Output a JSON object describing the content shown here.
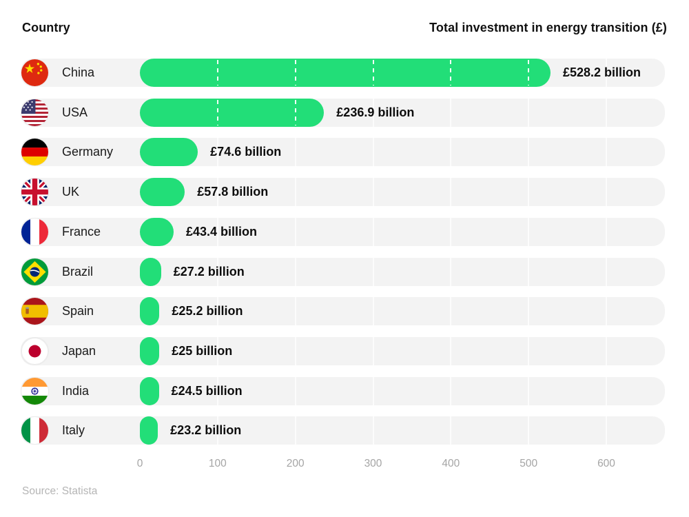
{
  "header": {
    "left": "Country",
    "right": "Total investment in energy transition (£)"
  },
  "rows": [
    {
      "country": "China",
      "flag": "china-flag-icon",
      "value": 528.2,
      "label": "£528.2 billion"
    },
    {
      "country": "USA",
      "flag": "usa-flag-icon",
      "value": 236.9,
      "label": "£236.9 billion"
    },
    {
      "country": "Germany",
      "flag": "germany-flag-icon",
      "value": 74.6,
      "label": "£74.6 billion"
    },
    {
      "country": "UK",
      "flag": "uk-flag-icon",
      "value": 57.8,
      "label": "£57.8 billion"
    },
    {
      "country": "France",
      "flag": "france-flag-icon",
      "value": 43.4,
      "label": "£43.4 billion"
    },
    {
      "country": "Brazil",
      "flag": "brazil-flag-icon",
      "value": 27.2,
      "label": "£27.2 billion"
    },
    {
      "country": "Spain",
      "flag": "spain-flag-icon",
      "value": 25.2,
      "label": "£25.2 billion"
    },
    {
      "country": "Japan",
      "flag": "japan-flag-icon",
      "value": 25,
      "label": "£25 billion"
    },
    {
      "country": "India",
      "flag": "india-flag-icon",
      "value": 24.5,
      "label": "£24.5 billion"
    },
    {
      "country": "Italy",
      "flag": "italy-flag-icon",
      "value": 23.2,
      "label": "£23.2 billion"
    }
  ],
  "axis": {
    "ticks": [
      0,
      100,
      200,
      300,
      400,
      500,
      600
    ]
  },
  "source": "Source: Statista",
  "colors": {
    "bar_green": "#22de78",
    "row_background": "#f3f3f3",
    "text_dark": "#111111",
    "axis_gray": "#a5a5a5",
    "source_gray": "#b5b5b5"
  },
  "chart_data": {
    "type": "bar",
    "orientation": "horizontal",
    "title": "Total investment in energy transition (£)",
    "categories": [
      "China",
      "USA",
      "Germany",
      "UK",
      "France",
      "Brazil",
      "Spain",
      "Japan",
      "India",
      "Italy"
    ],
    "values": [
      528.2,
      236.9,
      74.6,
      57.8,
      43.4,
      27.2,
      25.2,
      25,
      24.5,
      23.2
    ],
    "value_labels": [
      "£528.2 billion",
      "£236.9 billion",
      "£74.6 billion",
      "£57.8 billion",
      "£43.4 billion",
      "£27.2 billion",
      "£25.2 billion",
      "£25 billion",
      "£24.5 billion",
      "£23.2 billion"
    ],
    "unit": "£ billion",
    "xlabel": "",
    "ylabel": "Country",
    "xlim": [
      0,
      600
    ],
    "x_ticks": [
      0,
      100,
      200,
      300,
      400,
      500,
      600
    ],
    "grid": "white dashed tick lines over bars",
    "legend": "none",
    "source": "Source: Statista",
    "bar_color": "#22de78"
  }
}
